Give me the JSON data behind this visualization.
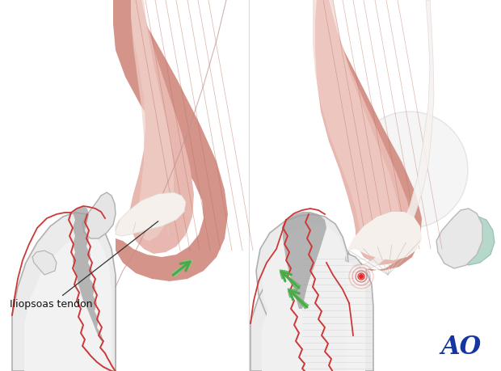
{
  "fig_width": 6.2,
  "fig_height": 4.59,
  "dpi": 100,
  "bg_color": "#ffffff",
  "bone_fill": "#eeeeee",
  "bone_edge": "#b0b0b0",
  "bone_shadow": "#d8d8d8",
  "muscle_base": "#d4948a",
  "muscle_light": "#e8b8b0",
  "muscle_highlight": "#f0d0c8",
  "muscle_dark": "#b87060",
  "tendon_color": "#f5f0ec",
  "tendon_edge": "#d8cfc8",
  "gray_frag": "#a8a8a8",
  "gray_frag_dark": "#888888",
  "fracture_color": "#cc3838",
  "green_arrow": "#4aaa4a",
  "green_arrow_light": "#88cc88",
  "label_text": "Iliopsoas tendon",
  "label_fs": 9,
  "ao_text": "AO",
  "ao_color": "#1535a0",
  "ao_fs": 22
}
